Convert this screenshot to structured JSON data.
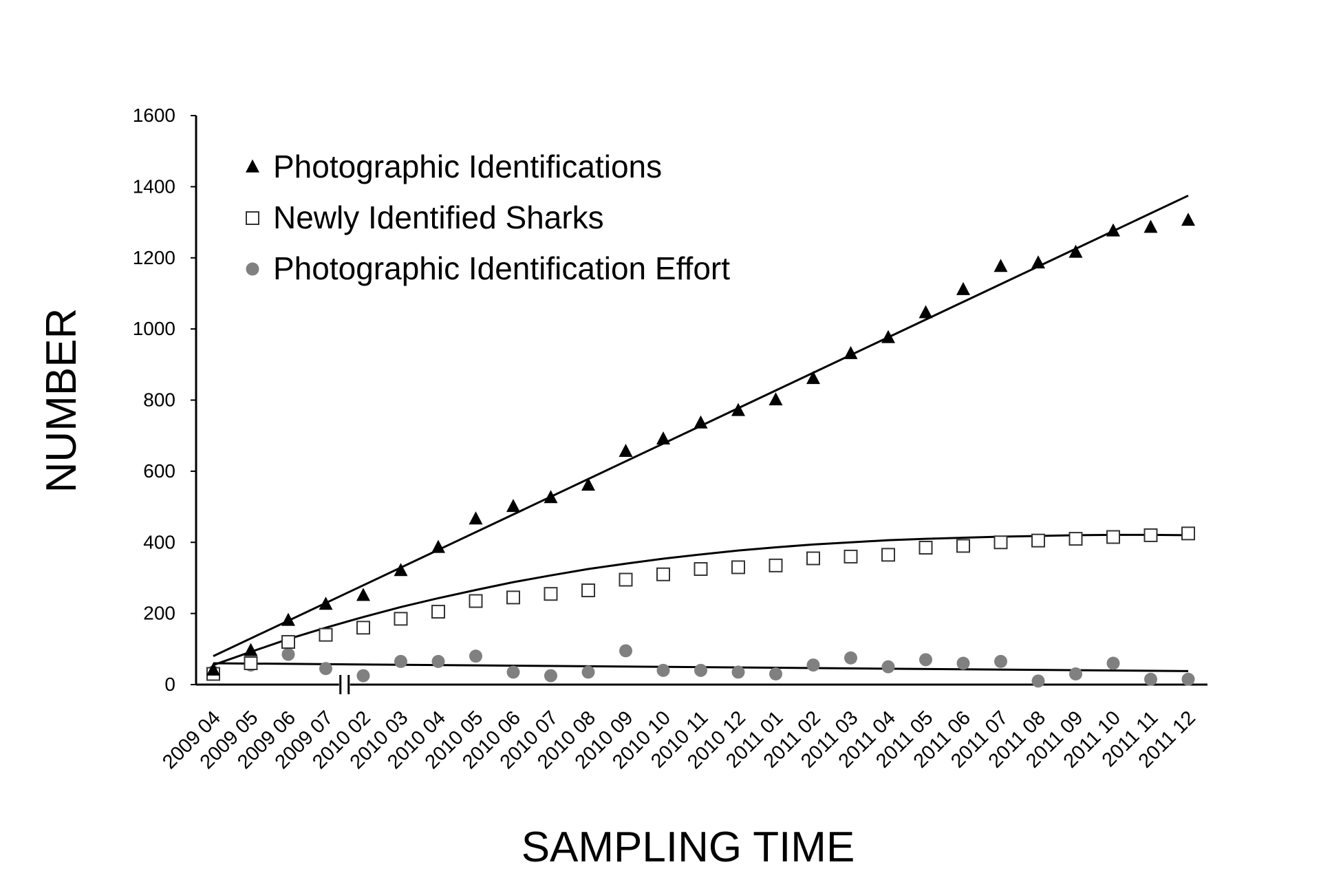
{
  "chart_data": {
    "type": "scatter",
    "title": "",
    "xlabel": "SAMPLING TIME",
    "ylabel": "NUMBER",
    "ylim": [
      0,
      1600
    ],
    "yticks": [
      0,
      200,
      400,
      600,
      800,
      1000,
      1200,
      1400,
      1600
    ],
    "grid": false,
    "legend_position": "top-left",
    "axis_break_after": "2009 07",
    "categories": [
      "2009 04",
      "2009 05",
      "2009 06",
      "2009 07",
      "2010 02",
      "2010 03",
      "2010 04",
      "2010 05",
      "2010 06",
      "2010 07",
      "2010 08",
      "2010 09",
      "2010 10",
      "2010 11",
      "2010 12",
      "2011 01",
      "2011 02",
      "2011 03",
      "2011 04",
      "2011 05",
      "2011 06",
      "2011 07",
      "2011 08",
      "2011 09",
      "2011 10",
      "2011 11",
      "2011 12"
    ],
    "series": [
      {
        "name": "Photographic Identifications",
        "marker": "triangle",
        "color": "#000000",
        "values": [
          40,
          95,
          180,
          225,
          250,
          320,
          385,
          465,
          500,
          525,
          560,
          655,
          690,
          735,
          770,
          800,
          860,
          930,
          975,
          1045,
          1110,
          1175,
          1185,
          1215,
          1275,
          1285,
          1305
        ],
        "trend": "linear",
        "trend_range": [
          80,
          1375
        ]
      },
      {
        "name": "Newly Identified Sharks",
        "marker": "square-open",
        "color": "#333333",
        "values": [
          30,
          60,
          120,
          140,
          160,
          185,
          205,
          235,
          245,
          255,
          265,
          295,
          310,
          325,
          330,
          335,
          355,
          360,
          365,
          385,
          390,
          400,
          405,
          410,
          415,
          420,
          425
        ],
        "trend": "polynomial",
        "trend_points": [
          55,
          92,
          128,
          160,
          190,
          218,
          243,
          266,
          288,
          307,
          325,
          340,
          354,
          366,
          377,
          386,
          394,
          400,
          406,
          410,
          413,
          416,
          418,
          420,
          421,
          421,
          420
        ]
      },
      {
        "name": "Photographic Identification Effort",
        "marker": "circle",
        "color": "#808080",
        "values": [
          35,
          55,
          85,
          45,
          25,
          65,
          65,
          80,
          35,
          25,
          35,
          95,
          40,
          40,
          35,
          30,
          55,
          75,
          50,
          70,
          60,
          65,
          10,
          30,
          60,
          15,
          15
        ],
        "trend": "linear",
        "trend_range": [
          60,
          38
        ]
      }
    ]
  }
}
